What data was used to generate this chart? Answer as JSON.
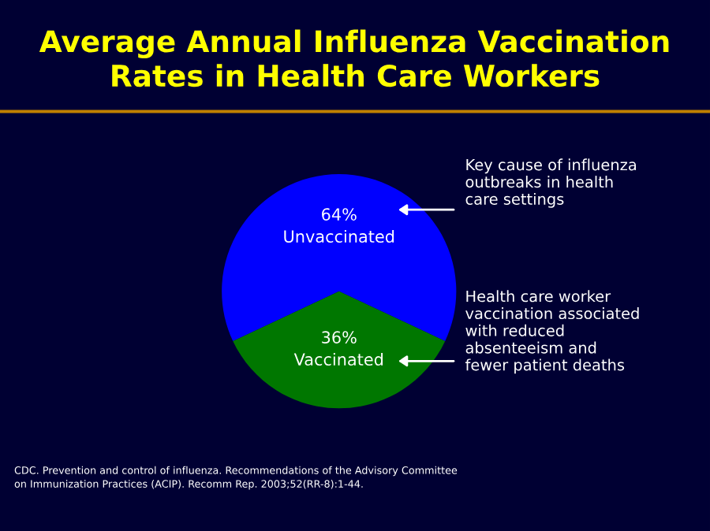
{
  "chart_data": {
    "type": "pie",
    "title": "Average Annual Influenza Vaccination\nRates in Health Care Workers",
    "categories": [
      "Unvaccinated",
      "Vaccinated"
    ],
    "values": [
      64,
      36
    ],
    "colors": [
      "#0000ff",
      "#007700"
    ],
    "value_labels": [
      "64%",
      "36%"
    ],
    "annotations": [
      "Key cause of influenza\noutbreaks in health\ncare settings",
      "Health care worker\nvaccination associated\nwith reduced\nabsenteeism and\nfewer patient deaths",
      "CDC. Prevention and control of influenza. Recommendations of the Advisory Committee\non Immunization Practices (ACIP). Recomm Rep. 2003;52(RR-8):1-44."
    ]
  }
}
